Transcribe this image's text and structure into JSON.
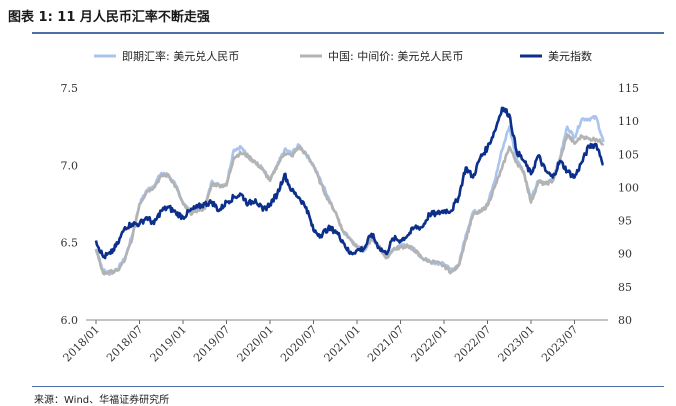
{
  "header": {
    "title": "图表 1:  11 月人民币汇率不断走强",
    "source": "来源：Wind、华福证券研究所"
  },
  "chart_data": {
    "type": "line",
    "x": [
      "2018/01",
      "2018/07",
      "2019/01",
      "2019/07",
      "2020/01",
      "2020/07",
      "2021/01",
      "2021/07",
      "2022/01",
      "2022/07",
      "2023/01",
      "2023/07"
    ],
    "xlabel": "",
    "y_left": {
      "ylim": [
        6.0,
        7.5
      ],
      "ticks": [
        "6.0",
        "6.5",
        "7.0",
        "7.5"
      ]
    },
    "y_right": {
      "ylim": [
        80,
        115
      ],
      "ticks": [
        "80",
        "85",
        "90",
        "95",
        "100",
        "105",
        "110",
        "115"
      ]
    },
    "legend_position": "top",
    "series": [
      {
        "name": "即期汇率: 美元兑人民币",
        "axis": "left",
        "color": "#a9c4ee",
        "points": [
          [
            "2018/01",
            6.45
          ],
          [
            "2018/02",
            6.32
          ],
          [
            "2018/03",
            6.3
          ],
          [
            "2018/04",
            6.33
          ],
          [
            "2018/05",
            6.4
          ],
          [
            "2018/06",
            6.55
          ],
          [
            "2018/07",
            6.75
          ],
          [
            "2018/08",
            6.84
          ],
          [
            "2018/09",
            6.87
          ],
          [
            "2018/10",
            6.95
          ],
          [
            "2018/11",
            6.93
          ],
          [
            "2018/12",
            6.87
          ],
          [
            "2019/01",
            6.76
          ],
          [
            "2019/02",
            6.7
          ],
          [
            "2019/03",
            6.72
          ],
          [
            "2019/04",
            6.73
          ],
          [
            "2019/05",
            6.9
          ],
          [
            "2019/06",
            6.87
          ],
          [
            "2019/07",
            6.88
          ],
          [
            "2019/08",
            7.1
          ],
          [
            "2019/09",
            7.12
          ],
          [
            "2019/10",
            7.05
          ],
          [
            "2019/11",
            7.02
          ],
          [
            "2019/12",
            6.98
          ],
          [
            "2020/01",
            6.9
          ],
          [
            "2020/02",
            7.0
          ],
          [
            "2020/03",
            7.1
          ],
          [
            "2020/04",
            7.08
          ],
          [
            "2020/05",
            7.13
          ],
          [
            "2020/06",
            7.07
          ],
          [
            "2020/07",
            7.0
          ],
          [
            "2020/08",
            6.9
          ],
          [
            "2020/09",
            6.8
          ],
          [
            "2020/10",
            6.7
          ],
          [
            "2020/11",
            6.58
          ],
          [
            "2020/12",
            6.53
          ],
          [
            "2021/01",
            6.47
          ],
          [
            "2021/02",
            6.45
          ],
          [
            "2021/03",
            6.53
          ],
          [
            "2021/04",
            6.48
          ],
          [
            "2021/05",
            6.4
          ],
          [
            "2021/06",
            6.45
          ],
          [
            "2021/07",
            6.48
          ],
          [
            "2021/08",
            6.48
          ],
          [
            "2021/09",
            6.45
          ],
          [
            "2021/10",
            6.4
          ],
          [
            "2021/11",
            6.38
          ],
          [
            "2021/12",
            6.37
          ],
          [
            "2022/01",
            6.36
          ],
          [
            "2022/02",
            6.32
          ],
          [
            "2022/03",
            6.35
          ],
          [
            "2022/04",
            6.55
          ],
          [
            "2022/05",
            6.7
          ],
          [
            "2022/06",
            6.7
          ],
          [
            "2022/07",
            6.75
          ],
          [
            "2022/08",
            6.9
          ],
          [
            "2022/09",
            7.1
          ],
          [
            "2022/10",
            7.25
          ],
          [
            "2022/11",
            7.05
          ],
          [
            "2022/12",
            6.95
          ],
          [
            "2023/01",
            6.78
          ],
          [
            "2023/02",
            6.9
          ],
          [
            "2023/03",
            6.88
          ],
          [
            "2023/04",
            6.92
          ],
          [
            "2023/05",
            7.05
          ],
          [
            "2023/06",
            7.25
          ],
          [
            "2023/07",
            7.18
          ],
          [
            "2023/08",
            7.3
          ],
          [
            "2023/09",
            7.3
          ],
          [
            "2023/10",
            7.31
          ],
          [
            "2023/11",
            7.15
          ]
        ]
      },
      {
        "name": "中国: 中间价: 美元兑人民币",
        "axis": "left",
        "color": "#b3b3b3",
        "points": [
          [
            "2018/01",
            6.46
          ],
          [
            "2018/02",
            6.3
          ],
          [
            "2018/03",
            6.31
          ],
          [
            "2018/04",
            6.32
          ],
          [
            "2018/05",
            6.39
          ],
          [
            "2018/06",
            6.53
          ],
          [
            "2018/07",
            6.75
          ],
          [
            "2018/08",
            6.83
          ],
          [
            "2018/09",
            6.86
          ],
          [
            "2018/10",
            6.93
          ],
          [
            "2018/11",
            6.94
          ],
          [
            "2018/12",
            6.86
          ],
          [
            "2019/01",
            6.75
          ],
          [
            "2019/02",
            6.69
          ],
          [
            "2019/03",
            6.71
          ],
          [
            "2019/04",
            6.72
          ],
          [
            "2019/05",
            6.88
          ],
          [
            "2019/06",
            6.87
          ],
          [
            "2019/07",
            6.87
          ],
          [
            "2019/08",
            7.05
          ],
          [
            "2019/09",
            7.08
          ],
          [
            "2019/10",
            7.06
          ],
          [
            "2019/11",
            7.02
          ],
          [
            "2019/12",
            6.97
          ],
          [
            "2020/01",
            6.9
          ],
          [
            "2020/02",
            7.0
          ],
          [
            "2020/03",
            7.08
          ],
          [
            "2020/04",
            7.06
          ],
          [
            "2020/05",
            7.12
          ],
          [
            "2020/06",
            7.07
          ],
          [
            "2020/07",
            7.0
          ],
          [
            "2020/08",
            6.88
          ],
          [
            "2020/09",
            6.78
          ],
          [
            "2020/10",
            6.7
          ],
          [
            "2020/11",
            6.58
          ],
          [
            "2020/12",
            6.53
          ],
          [
            "2021/01",
            6.47
          ],
          [
            "2021/02",
            6.46
          ],
          [
            "2021/03",
            6.52
          ],
          [
            "2021/04",
            6.48
          ],
          [
            "2021/05",
            6.4
          ],
          [
            "2021/06",
            6.46
          ],
          [
            "2021/07",
            6.47
          ],
          [
            "2021/08",
            6.48
          ],
          [
            "2021/09",
            6.45
          ],
          [
            "2021/10",
            6.4
          ],
          [
            "2021/11",
            6.38
          ],
          [
            "2021/12",
            6.37
          ],
          [
            "2022/01",
            6.35
          ],
          [
            "2022/02",
            6.31
          ],
          [
            "2022/03",
            6.35
          ],
          [
            "2022/04",
            6.52
          ],
          [
            "2022/05",
            6.68
          ],
          [
            "2022/06",
            6.7
          ],
          [
            "2022/07",
            6.74
          ],
          [
            "2022/08",
            6.86
          ],
          [
            "2022/09",
            6.98
          ],
          [
            "2022/10",
            7.12
          ],
          [
            "2022/11",
            7.02
          ],
          [
            "2022/12",
            6.96
          ],
          [
            "2023/01",
            6.76
          ],
          [
            "2023/02",
            6.89
          ],
          [
            "2023/03",
            6.88
          ],
          [
            "2023/04",
            6.9
          ],
          [
            "2023/05",
            7.03
          ],
          [
            "2023/06",
            7.2
          ],
          [
            "2023/07",
            7.14
          ],
          [
            "2023/08",
            7.19
          ],
          [
            "2023/09",
            7.17
          ],
          [
            "2023/10",
            7.17
          ],
          [
            "2023/11",
            7.14
          ]
        ]
      },
      {
        "name": "美元指数",
        "axis": "right",
        "color": "#0b2f8a",
        "points": [
          [
            "2018/01",
            92.0
          ],
          [
            "2018/02",
            89.5
          ],
          [
            "2018/03",
            90.0
          ],
          [
            "2018/04",
            91.5
          ],
          [
            "2018/05",
            94.0
          ],
          [
            "2018/06",
            94.5
          ],
          [
            "2018/07",
            94.5
          ],
          [
            "2018/08",
            95.5
          ],
          [
            "2018/09",
            94.5
          ],
          [
            "2018/10",
            96.5
          ],
          [
            "2018/11",
            97.0
          ],
          [
            "2018/12",
            96.2
          ],
          [
            "2019/01",
            95.5
          ],
          [
            "2019/02",
            96.5
          ],
          [
            "2019/03",
            97.0
          ],
          [
            "2019/04",
            97.5
          ],
          [
            "2019/05",
            97.8
          ],
          [
            "2019/06",
            96.5
          ],
          [
            "2019/07",
            97.8
          ],
          [
            "2019/08",
            98.5
          ],
          [
            "2019/09",
            99.0
          ],
          [
            "2019/10",
            97.5
          ],
          [
            "2019/11",
            98.2
          ],
          [
            "2019/12",
            96.5
          ],
          [
            "2020/01",
            97.5
          ],
          [
            "2020/02",
            99.0
          ],
          [
            "2020/03",
            102.0
          ],
          [
            "2020/04",
            99.5
          ],
          [
            "2020/05",
            98.5
          ],
          [
            "2020/06",
            97.0
          ],
          [
            "2020/07",
            93.5
          ],
          [
            "2020/08",
            92.8
          ],
          [
            "2020/09",
            93.8
          ],
          [
            "2020/10",
            93.5
          ],
          [
            "2020/11",
            92.0
          ],
          [
            "2020/12",
            90.0
          ],
          [
            "2021/01",
            90.5
          ],
          [
            "2021/02",
            90.8
          ],
          [
            "2021/03",
            93.0
          ],
          [
            "2021/04",
            91.0
          ],
          [
            "2021/05",
            90.0
          ],
          [
            "2021/06",
            92.3
          ],
          [
            "2021/07",
            92.0
          ],
          [
            "2021/08",
            92.8
          ],
          [
            "2021/09",
            94.0
          ],
          [
            "2021/10",
            94.0
          ],
          [
            "2021/11",
            96.0
          ],
          [
            "2021/12",
            96.0
          ],
          [
            "2022/01",
            96.5
          ],
          [
            "2022/02",
            96.5
          ],
          [
            "2022/03",
            98.5
          ],
          [
            "2022/04",
            103.0
          ],
          [
            "2022/05",
            101.5
          ],
          [
            "2022/06",
            104.5
          ],
          [
            "2022/07",
            106.0
          ],
          [
            "2022/08",
            108.5
          ],
          [
            "2022/09",
            112.0
          ],
          [
            "2022/10",
            111.0
          ],
          [
            "2022/11",
            105.5
          ],
          [
            "2022/12",
            104.0
          ],
          [
            "2023/01",
            102.0
          ],
          [
            "2023/02",
            104.8
          ],
          [
            "2023/03",
            102.5
          ],
          [
            "2023/04",
            101.5
          ],
          [
            "2023/05",
            104.0
          ],
          [
            "2023/06",
            102.5
          ],
          [
            "2023/07",
            101.5
          ],
          [
            "2023/08",
            103.8
          ],
          [
            "2023/09",
            106.2
          ],
          [
            "2023/10",
            106.5
          ],
          [
            "2023/11",
            103.5
          ]
        ]
      }
    ]
  }
}
